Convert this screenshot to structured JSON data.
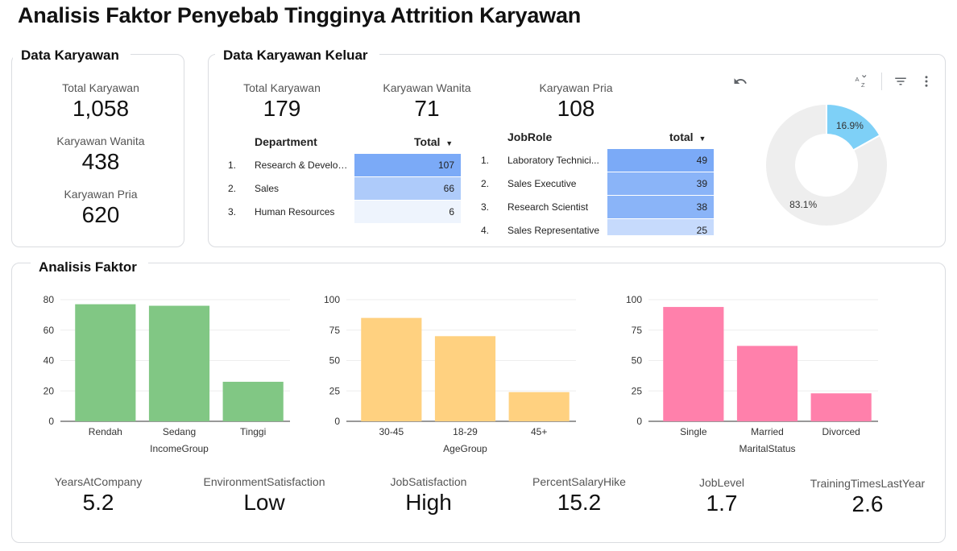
{
  "title": "Analisis Faktor Penyebab Tingginya Attrition Karyawan",
  "data_karyawan": {
    "title": "Data Karyawan",
    "kpis": [
      {
        "label": "Total Karyawan",
        "value": "1,058"
      },
      {
        "label": "Karyawan Wanita",
        "value": "438"
      },
      {
        "label": "Karyawan Pria",
        "value": "620"
      }
    ]
  },
  "data_keluar": {
    "title": "Data Karyawan Keluar",
    "kpis": [
      {
        "label": "Total Karyawan",
        "value": "179"
      },
      {
        "label": "Karyawan Wanita",
        "value": "71"
      },
      {
        "label": "Karyawan Pria",
        "value": "108"
      }
    ],
    "department_table": {
      "col1": "Department",
      "col2": "Total",
      "sort_icon": "sort-desc-icon",
      "rows": [
        {
          "idx": "1.",
          "name": "Research & Develop...",
          "value": 107
        },
        {
          "idx": "2.",
          "name": "Sales",
          "value": 66
        },
        {
          "idx": "3.",
          "name": "Human Resources",
          "value": 6
        }
      ]
    },
    "jobrole_table": {
      "col1": "JobRole",
      "col2": "total",
      "sort_icon": "sort-desc-icon",
      "rows": [
        {
          "idx": "1.",
          "name": "Laboratory Technici...",
          "value": 49
        },
        {
          "idx": "2.",
          "name": "Sales Executive",
          "value": 39
        },
        {
          "idx": "3.",
          "name": "Research Scientist",
          "value": 38
        },
        {
          "idx": "4.",
          "name": "Sales Representative",
          "value": 25
        }
      ]
    },
    "toolbar_icons": [
      "undo-icon",
      "sort-az-icon",
      "filter-icon",
      "more-vert-icon"
    ]
  },
  "chart_data": [
    {
      "type": "pie",
      "donut": true,
      "slices": [
        {
          "label": "16.9%",
          "value": 16.9,
          "color": "#7ed0f7"
        },
        {
          "label": "83.1%",
          "value": 83.1,
          "color": "#eeeeee"
        }
      ]
    },
    {
      "type": "bar",
      "categories": [
        "Rendah",
        "Sedang",
        "Tinggi"
      ],
      "values": [
        77,
        76,
        26
      ],
      "xlabel": "IncomeGroup",
      "ylim": [
        0,
        80
      ],
      "yticks": [
        0,
        20,
        40,
        60,
        80
      ],
      "color": "#81c784",
      "grid": true
    },
    {
      "type": "bar",
      "categories": [
        "30-45",
        "18-29",
        "45+"
      ],
      "values": [
        85,
        70,
        24
      ],
      "xlabel": "AgeGroup",
      "ylim": [
        0,
        100
      ],
      "yticks": [
        0,
        25,
        50,
        75,
        100
      ],
      "color": "#ffd180",
      "grid": true
    },
    {
      "type": "bar",
      "categories": [
        "Single",
        "Married",
        "Divorced"
      ],
      "values": [
        94,
        62,
        23
      ],
      "xlabel": "MaritalStatus",
      "ylim": [
        0,
        100
      ],
      "yticks": [
        0,
        25,
        50,
        75,
        100
      ],
      "color": "#ff80ab",
      "grid": true
    }
  ],
  "analisis": {
    "title": "Analisis Faktor",
    "kpis": [
      {
        "label": "YearsAtCompany",
        "value": "5.2"
      },
      {
        "label": "EnvironmentSatisfaction",
        "value": "Low"
      },
      {
        "label": "JobSatisfaction",
        "value": "High"
      },
      {
        "label": "PercentSalaryHike",
        "value": "15.2"
      },
      {
        "label": "JobLevel",
        "value": "1.7"
      },
      {
        "label": "TrainingTimesLastYear",
        "value": "2.6"
      }
    ]
  }
}
